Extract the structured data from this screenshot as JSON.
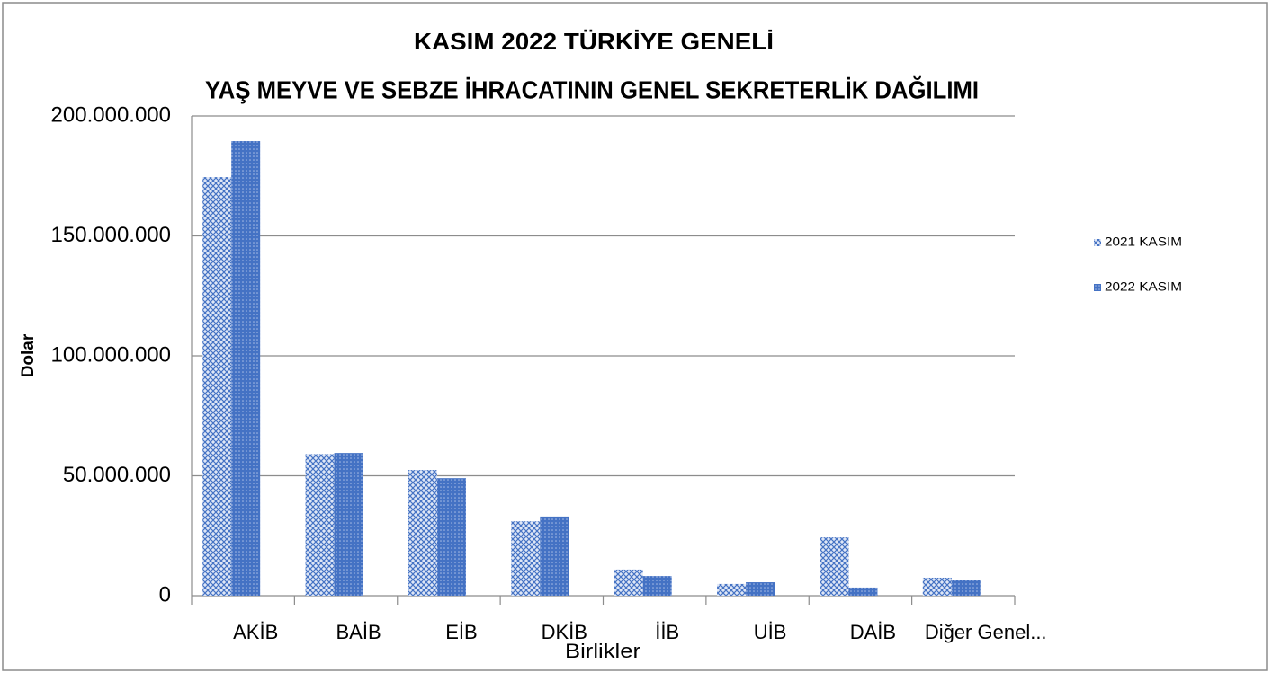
{
  "chart_data": {
    "type": "bar",
    "title": "KASIM  2022 TÜRKİYE GENELİ",
    "subtitle": "YAŞ MEYVE VE SEBZE İHRACATININ GENEL SEKRETERLİK DAĞILIMI",
    "y_label": "Dolar",
    "x_label": "Birlikler",
    "categories": [
      "AKİB",
      "BAİB",
      "EİB",
      "DKİB",
      "İİB",
      "UİB",
      "DAİB",
      "Diğer Genel..."
    ],
    "series": [
      {
        "name": "2021 KASIM",
        "color": "#4472c4",
        "pattern": "crosshatch",
        "values": [
          174500000,
          59000000,
          52400000,
          31000000,
          10900000,
          4900000,
          24300000,
          7500000
        ]
      },
      {
        "name": "2022 KASIM",
        "color": "#4472c4",
        "pattern": "dots",
        "values": [
          189500000,
          59500000,
          49000000,
          33000000,
          8200000,
          5600000,
          3400000,
          6700000
        ]
      }
    ],
    "ylim": [
      0,
      200000000
    ],
    "yticks": [
      0,
      {
        "value": 50000000,
        "label": "50.000.000"
      },
      {
        "value": 100000000,
        "label": "100.000.000"
      },
      {
        "value": 150000000,
        "label": "150.000.000"
      },
      {
        "value": 200000000,
        "label": "200.000.000"
      }
    ],
    "grid": true,
    "legend": "right"
  }
}
